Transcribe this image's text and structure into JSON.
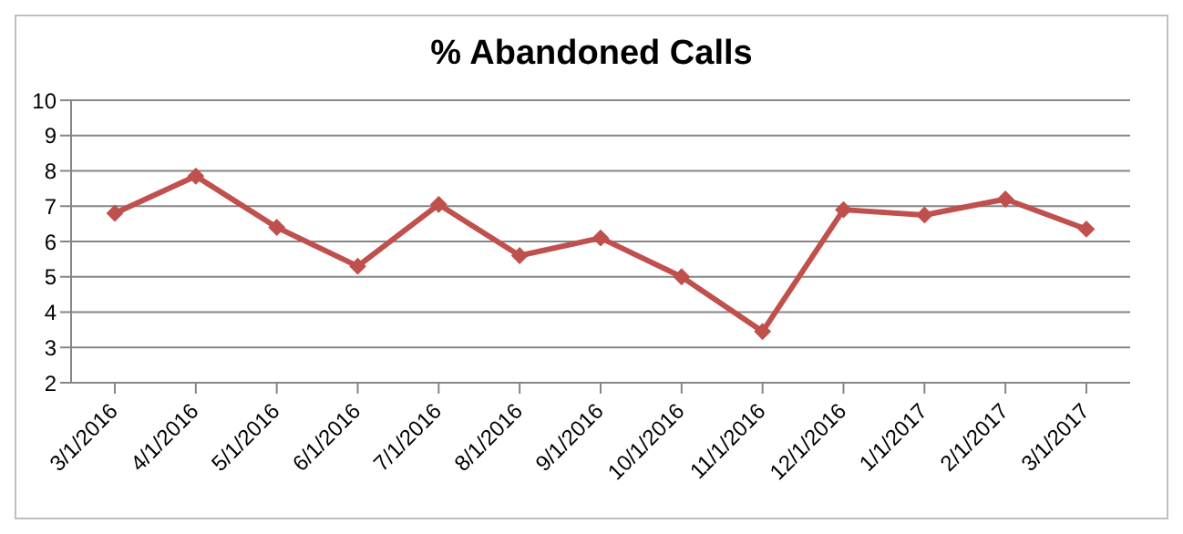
{
  "chart_data": {
    "type": "line",
    "title": "% Abandoned Calls",
    "categories": [
      "3/1/2016",
      "4/1/2016",
      "5/1/2016",
      "6/1/2016",
      "7/1/2016",
      "8/1/2016",
      "9/1/2016",
      "10/1/2016",
      "11/1/2016",
      "12/1/2016",
      "1/1/2017",
      "2/1/2017",
      "3/1/2017"
    ],
    "series": [
      {
        "color": "#c0504d",
        "values": [
          6.8,
          7.85,
          6.4,
          5.3,
          7.05,
          5.6,
          6.1,
          5.0,
          3.45,
          6.9,
          6.75,
          7.2,
          6.35
        ]
      }
    ],
    "ylim": [
      2,
      10
    ],
    "yticks": [
      2,
      3,
      4,
      5,
      6,
      7,
      8,
      9,
      10
    ],
    "grid": "y",
    "legend": false,
    "marker": "diamond",
    "line_style": "solid"
  }
}
